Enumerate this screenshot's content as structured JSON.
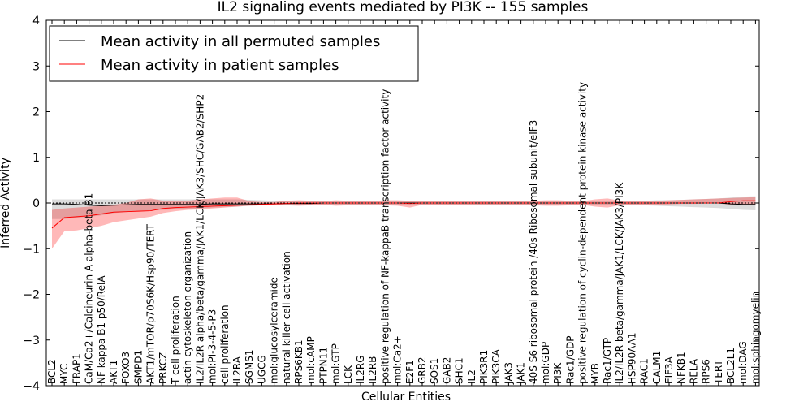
{
  "chart_data": {
    "type": "line",
    "title": "IL2 signaling events mediated by PI3K -- 155 samples",
    "xlabel": "Cellular Entities",
    "ylabel": "Inferred Activity",
    "ylim": [
      -4,
      4
    ],
    "yticks": [
      -4,
      -3,
      -2,
      -1,
      0,
      1,
      2,
      3,
      4
    ],
    "ytick_labels": [
      "−4",
      "−3",
      "−2",
      "−1",
      "0",
      "1",
      "2",
      "3",
      "4"
    ],
    "legend": {
      "placement": "top-left",
      "entries": [
        {
          "label": "Mean activity in all permuted samples",
          "color": "#000000"
        },
        {
          "label": "Mean activity in patient samples",
          "color": "#ff0000"
        }
      ]
    },
    "categories": [
      "BCL2",
      "MYC",
      "FRAP1",
      "CaM/Ca2+/Calcineurin A alpha-beta B1",
      "NF kappa B1 p50/RelA",
      "AKT1",
      "FOXO3",
      "SMPD1",
      "AKT1/mTOR/p70S6K/Hsp90/TERT",
      "PRKCZ",
      "T cell proliferation",
      "actin cytoskeleton organization",
      "IL2/IL2R alpha/beta/gamma/JAK1/LCK/JAK3/SHC/GAB2/SHP2",
      "mol:PI-3-4-5-P3",
      "cell proliferation",
      "IL2RA",
      "SGMS1",
      "UGCG",
      "mol:glucosylceramide",
      "natural killer cell activation",
      "RPS6KB1",
      "mol:cAMP",
      "PTPN11",
      "mol:GTP",
      "LCK",
      "IL2RG",
      "IL2RB",
      "positive regulation of NF-kappaB transcription factor activity",
      "mol:Ca2+",
      "E2F1",
      "GRB2",
      "SOS1",
      "GAB2",
      "SHC1",
      "IL2",
      "PIK3R1",
      "PIK3CA",
      "JAK3",
      "JAK1",
      "40S S6 ribosomal protein /40s Ribosomal subunit/eIF3",
      "mol:GDP",
      "PI3K",
      "Rac1/GDP",
      "positive regulation of cyclin-dependent protein kinase activity",
      "MYB",
      "Rac1/GTP",
      "IL2/IL2R beta/gamma/JAK1/LCK/JAK3/PI3K",
      "HSP90AA1",
      "RAC1",
      "CALM1",
      "EIF3A",
      "NFKB1",
      "RELA",
      "RPS6",
      "TERT",
      "BCL2L1",
      "mol:DAG",
      "mol:sphingomyelin"
    ],
    "series": [
      {
        "name": "Mean activity in all permuted samples",
        "color": "#000000",
        "values": [
          -0.02,
          -0.02,
          -0.03,
          -0.05,
          -0.06,
          -0.05,
          -0.04,
          -0.03,
          -0.03,
          -0.03,
          -0.03,
          -0.03,
          -0.03,
          -0.02,
          -0.02,
          -0.02,
          -0.02,
          -0.02,
          -0.02,
          -0.01,
          -0.01,
          -0.01,
          0,
          0,
          0,
          0,
          0,
          0,
          0,
          0,
          0,
          0,
          0,
          0,
          0,
          0,
          0,
          0,
          0,
          0,
          0,
          0,
          0,
          0,
          0,
          0,
          0,
          0,
          0,
          0,
          0,
          0,
          0,
          0,
          0,
          -0.02,
          -0.03,
          -0.03
        ],
        "band_upper": [
          0.08,
          0.08,
          0.08,
          0.08,
          0.08,
          0.08,
          0.08,
          0.08,
          0.08,
          0.08,
          0.08,
          0.08,
          0.08,
          0.08,
          0.08,
          0.08,
          0.07,
          0.06,
          0.05,
          0.05,
          0.05,
          0.05,
          0.05,
          0.05,
          0.05,
          0.05,
          0.05,
          0.05,
          0.05,
          0.05,
          0.05,
          0.05,
          0.05,
          0.05,
          0.05,
          0.05,
          0.05,
          0.05,
          0.05,
          0.05,
          0.05,
          0.05,
          0.05,
          0.05,
          0.05,
          0.05,
          0.05,
          0.05,
          0.05,
          0.06,
          0.06,
          0.07,
          0.08,
          0.09,
          0.1,
          0.12,
          0.14,
          0.15
        ],
        "band_lower": [
          -0.35,
          -0.35,
          -0.32,
          -0.3,
          -0.27,
          -0.22,
          -0.2,
          -0.18,
          -0.16,
          -0.15,
          -0.14,
          -0.13,
          -0.12,
          -0.1,
          -0.09,
          -0.08,
          -0.06,
          -0.05,
          -0.04,
          -0.04,
          -0.04,
          -0.04,
          -0.04,
          -0.04,
          -0.04,
          -0.04,
          -0.04,
          -0.04,
          -0.04,
          -0.04,
          -0.04,
          -0.04,
          -0.04,
          -0.04,
          -0.04,
          -0.04,
          -0.04,
          -0.04,
          -0.04,
          -0.04,
          -0.04,
          -0.04,
          -0.04,
          -0.04,
          -0.04,
          -0.04,
          -0.05,
          -0.05,
          -0.05,
          -0.06,
          -0.07,
          -0.08,
          -0.09,
          -0.1,
          -0.11,
          -0.13,
          -0.15,
          -0.16
        ]
      },
      {
        "name": "Mean activity in patient samples",
        "color": "#ff0000",
        "values": [
          -0.55,
          -0.32,
          -0.3,
          -0.28,
          -0.24,
          -0.2,
          -0.19,
          -0.18,
          -0.17,
          -0.12,
          -0.1,
          -0.09,
          -0.08,
          -0.07,
          -0.06,
          -0.05,
          -0.04,
          -0.03,
          -0.02,
          -0.01,
          0,
          0,
          0,
          0,
          0,
          0,
          0,
          0,
          0,
          -0.01,
          0,
          0,
          0,
          0,
          0,
          0,
          0,
          0,
          0,
          0,
          0,
          0,
          0,
          0,
          0,
          0,
          0,
          0,
          0,
          0,
          0,
          0,
          0,
          0,
          0,
          0.03,
          0.05,
          0.05
        ],
        "band_upper": [
          -0.15,
          -0.12,
          -0.1,
          -0.08,
          -0.06,
          -0.04,
          0,
          0.08,
          0.1,
          0.05,
          0.05,
          0.05,
          0.08,
          0.1,
          0.12,
          0.12,
          0.04,
          0.02,
          0.02,
          0.05,
          0.06,
          0.05,
          0.04,
          0.06,
          0.05,
          0.04,
          0.04,
          0.06,
          0.06,
          0.05,
          0.04,
          0.04,
          0.04,
          0.04,
          0.04,
          0.04,
          0.04,
          0.04,
          0.05,
          0.05,
          0.06,
          0.06,
          0.05,
          0.04,
          0.08,
          0.1,
          0.05,
          0.05,
          0.05,
          0.05,
          0.06,
          0.07,
          0.08,
          0.09,
          0.1,
          0.11,
          0.12,
          0.13
        ],
        "band_lower": [
          -1.0,
          -0.62,
          -0.6,
          -0.55,
          -0.5,
          -0.42,
          -0.38,
          -0.34,
          -0.3,
          -0.22,
          -0.18,
          -0.15,
          -0.14,
          -0.12,
          -0.1,
          -0.08,
          -0.06,
          -0.05,
          -0.04,
          -0.05,
          -0.06,
          -0.05,
          -0.04,
          -0.06,
          -0.05,
          -0.04,
          -0.04,
          -0.05,
          -0.06,
          -0.1,
          -0.04,
          -0.04,
          -0.04,
          -0.04,
          -0.04,
          -0.04,
          -0.04,
          -0.04,
          -0.05,
          -0.05,
          -0.06,
          -0.06,
          -0.05,
          -0.04,
          -0.08,
          -0.1,
          -0.05,
          -0.04,
          -0.04,
          -0.04,
          -0.03,
          -0.02,
          -0.02,
          -0.01,
          -0.01,
          -0.04,
          -0.04,
          -0.04
        ]
      }
    ]
  }
}
